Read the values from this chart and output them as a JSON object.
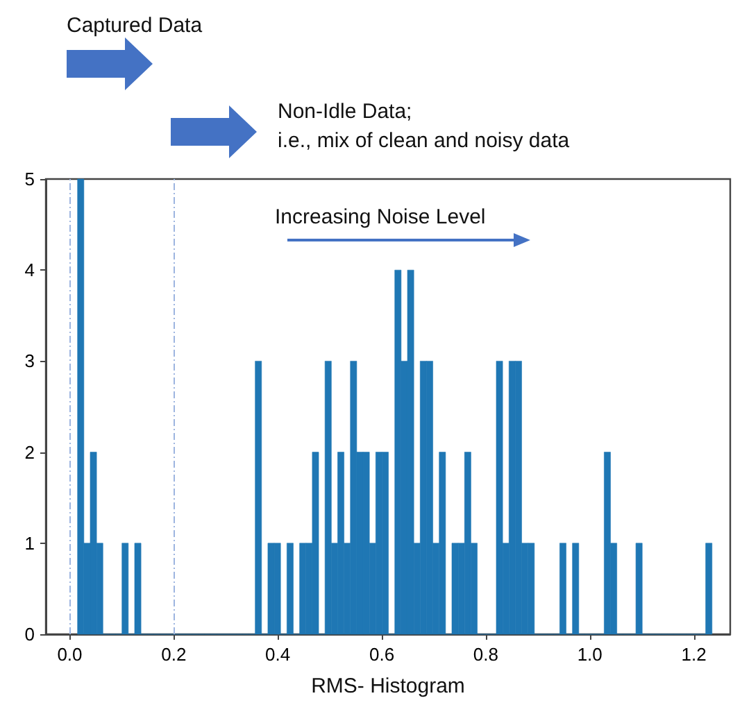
{
  "chart_data": {
    "type": "histogram",
    "xlabel": "RMS- Histogram",
    "bins": [
      0.015,
      0.0272,
      0.0394,
      0.0516,
      0.0638,
      0.076,
      0.0882,
      0.1004,
      0.1126,
      0.1248,
      0.137,
      0.1492,
      0.1614,
      0.1736,
      0.1858,
      0.198,
      0.2102,
      0.2224,
      0.2346,
      0.2468,
      0.259,
      0.2712,
      0.2834,
      0.2956,
      0.3078,
      0.32,
      0.3322,
      0.3444,
      0.3566,
      0.3688,
      0.381,
      0.3932,
      0.4054,
      0.4176,
      0.4298,
      0.442,
      0.4542,
      0.4664,
      0.4786,
      0.4908,
      0.503,
      0.5152,
      0.5274,
      0.5396,
      0.5518,
      0.564,
      0.5762,
      0.5884,
      0.6006,
      0.6128,
      0.625,
      0.6372,
      0.6494,
      0.6616,
      0.6738,
      0.686,
      0.6982,
      0.7104,
      0.7226,
      0.7348,
      0.747,
      0.7592,
      0.7714,
      0.7836,
      0.7958,
      0.808,
      0.8202,
      0.8324,
      0.8446,
      0.8568,
      0.869,
      0.8812,
      0.8934,
      0.9056,
      0.9178,
      0.93,
      0.9422,
      0.9544,
      0.9666,
      0.9788,
      0.991,
      1.0032,
      1.0154,
      1.0276,
      1.0398,
      1.052,
      1.0642,
      1.0764,
      1.0886,
      1.1008,
      1.113,
      1.1252,
      1.1374,
      1.1496,
      1.1618,
      1.174,
      1.1862,
      1.1984,
      1.2106,
      1.2228,
      1.235
    ],
    "values": [
      5,
      1,
      2,
      1,
      0,
      0,
      0,
      1,
      0,
      1,
      0,
      0,
      0,
      0,
      0,
      0,
      0,
      0,
      0,
      0,
      0,
      0,
      0,
      0,
      0,
      0,
      0,
      0,
      3,
      0,
      1,
      1,
      0,
      1,
      0,
      1,
      1,
      2,
      0,
      3,
      1,
      2,
      1,
      3,
      2,
      2,
      1,
      2,
      2,
      0,
      4,
      3,
      4,
      1,
      3,
      3,
      1,
      2,
      0,
      1,
      1,
      2,
      1,
      0,
      0,
      0,
      3,
      1,
      3,
      3,
      1,
      1,
      0,
      0,
      0,
      0,
      1,
      0,
      1,
      0,
      0,
      0,
      0,
      2,
      1,
      0,
      0,
      0,
      1,
      0,
      0,
      0,
      0,
      0,
      0,
      0,
      0,
      0,
      0,
      1
    ],
    "color": "#1f77b4",
    "xlim": [
      -0.046,
      1.27
    ],
    "xticks": [
      {
        "value": 0,
        "label": "0.0"
      },
      0.2,
      0.4,
      0.6,
      0.8,
      {
        "value": 1,
        "label": "1.0"
      },
      1.2
    ],
    "ylim": [
      0,
      5
    ],
    "yticks": [
      0,
      1,
      2,
      3,
      4,
      5
    ],
    "grid": false,
    "ref_lines": [
      {
        "axis": "x",
        "value": 0,
        "color": "#9db5e0",
        "line_style": "dashed"
      },
      {
        "axis": "x",
        "value": 0.2,
        "color": "#9db5e0",
        "line_style": "dashed"
      }
    ],
    "annotations": [
      "Captured Data",
      "Non-Idle Data;\ni.e., mix of clean and noisy data",
      "Increasing Noise Level"
    ]
  }
}
